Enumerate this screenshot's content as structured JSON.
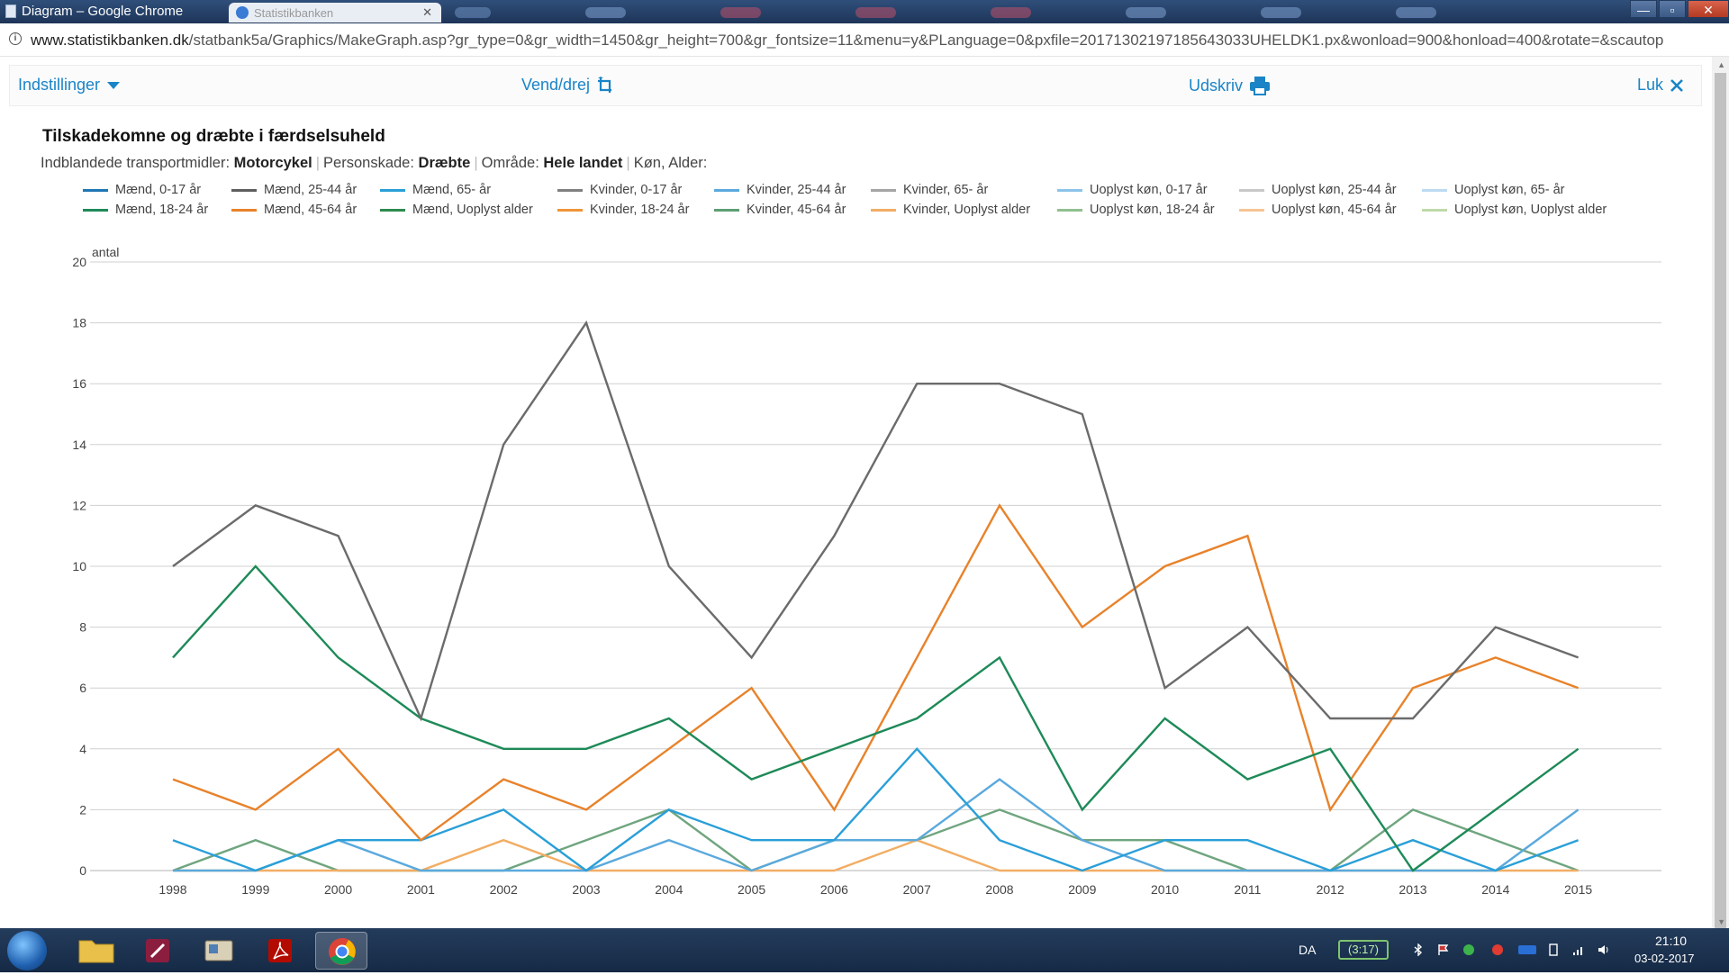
{
  "window": {
    "title": "Diagram – Google Chrome",
    "tab_label": "Statistikbanken",
    "controls": {
      "minimize": "—",
      "maximize": "▫",
      "close": "✕"
    }
  },
  "address": {
    "domain": "www.statistikbanken.dk",
    "path": "/statbank5a/Graphics/MakeGraph.asp?gr_type=0&gr_width=1450&gr_height=700&gr_fontsize=11&menu=y&PLanguage=0&pxfile=20171302197185643033UHELDK1.px&wonload=900&honload=400&rotate=&scautop"
  },
  "toolbar": {
    "settings": "Indstillinger",
    "rotate": "Vend/drej",
    "print": "Udskriv",
    "close": "Luk"
  },
  "subtitle": {
    "transport_label": "Indblandede transportmidler:",
    "transport_value": "Motorcykel",
    "injury_label": "Personskade:",
    "injury_value": "Dræbte",
    "area_label": "Område:",
    "area_value": "Hele landet",
    "sex_age_label": "Køn, Alder:"
  },
  "taskbar": {
    "language": "DA",
    "battery": "(3:17)",
    "clock": "21:10",
    "date": "03-02-2017"
  },
  "chart_data": {
    "type": "line",
    "title": "Tilskadekomne og dræbte i færdselsuheld",
    "ylabel": "antal",
    "xlabel": "",
    "ylim": [
      0,
      20
    ],
    "yticks": [
      0,
      2,
      4,
      6,
      8,
      10,
      12,
      14,
      16,
      18,
      20
    ],
    "grid": true,
    "legend_position": "top",
    "categories": [
      "1998",
      "1999",
      "2000",
      "2001",
      "2002",
      "2003",
      "2004",
      "2005",
      "2006",
      "2007",
      "2008",
      "2009",
      "2010",
      "2011",
      "2012",
      "2013",
      "2014",
      "2015"
    ],
    "legend": [
      {
        "name": "Mænd, 0-17 år",
        "color": "#1f77b4"
      },
      {
        "name": "Mænd, 18-24 år",
        "color": "#1e8a58"
      },
      {
        "name": "Mænd, 25-44 år",
        "color": "#5f5f5f"
      },
      {
        "name": "Mænd, 45-64 år",
        "color": "#e8822a"
      },
      {
        "name": "Mænd, 65- år",
        "color": "#2a9fd8"
      },
      {
        "name": "Mænd, Uoplyst alder",
        "color": "#2e8b4f"
      },
      {
        "name": "Kvinder, 0-17 år",
        "color": "#808080"
      },
      {
        "name": "Kvinder, 18-24 år",
        "color": "#f0953a"
      },
      {
        "name": "Kvinder, 25-44 år",
        "color": "#5aa9dd"
      },
      {
        "name": "Kvinder, 45-64 år",
        "color": "#5e9e74"
      },
      {
        "name": "Kvinder, 65- år",
        "color": "#a5a5a5"
      },
      {
        "name": "Kvinder, Uoplyst alder",
        "color": "#f2ad64"
      },
      {
        "name": "Uoplyst køn, 0-17 år",
        "color": "#8cc4ea"
      },
      {
        "name": "Uoplyst køn, 18-24 år",
        "color": "#8fc08f"
      },
      {
        "name": "Uoplyst køn, 25-44 år",
        "color": "#c8c8c8"
      },
      {
        "name": "Uoplyst køn, 45-64 år",
        "color": "#f6c594"
      },
      {
        "name": "Uoplyst køn, 65- år",
        "color": "#bcdaf2"
      },
      {
        "name": "Uoplyst køn, Uoplyst alder",
        "color": "#bfd9a8"
      }
    ],
    "series": [
      {
        "name": "Mænd, 25-44 år",
        "color": "#6b6b6b",
        "values": [
          10,
          12,
          11,
          5,
          14,
          18,
          10,
          7,
          11,
          16,
          16,
          15,
          6,
          8,
          5,
          5,
          8,
          7
        ]
      },
      {
        "name": "Mænd, 18-24 år",
        "color": "#1e8a58",
        "values": [
          7,
          10,
          7,
          5,
          4,
          4,
          5,
          3,
          4,
          5,
          7,
          2,
          5,
          3,
          4,
          0,
          2,
          4
        ]
      },
      {
        "name": "Mænd, 45-64 år",
        "color": "#e8822a",
        "values": [
          3,
          2,
          4,
          1,
          3,
          2,
          4,
          6,
          2,
          7,
          12,
          8,
          10,
          11,
          2,
          6,
          7,
          6
        ]
      },
      {
        "name": "Mænd, 0-17 år",
        "color": "#2a9fd8",
        "values": [
          1,
          0,
          1,
          1,
          2,
          0,
          2,
          1,
          1,
          4,
          1,
          0,
          1,
          1,
          0,
          1,
          0,
          1
        ]
      },
      {
        "name": "Mænd, 65- år",
        "color": "#5aa9dd",
        "values": [
          0,
          0,
          1,
          0,
          0,
          0,
          1,
          0,
          1,
          1,
          3,
          1,
          0,
          0,
          0,
          0,
          0,
          2
        ]
      },
      {
        "name": "Kvinder, 18-24 år",
        "color": "#f2ad64",
        "values": [
          0,
          0,
          0,
          0,
          1,
          0,
          0,
          0,
          0,
          1,
          0,
          0,
          0,
          0,
          0,
          0,
          0,
          0
        ]
      },
      {
        "name": "Kvinder, 25-44 år",
        "color": "#6fa57f",
        "values": [
          0,
          1,
          0,
          0,
          0,
          1,
          2,
          0,
          1,
          1,
          2,
          1,
          1,
          0,
          0,
          2,
          1,
          0
        ]
      }
    ]
  }
}
